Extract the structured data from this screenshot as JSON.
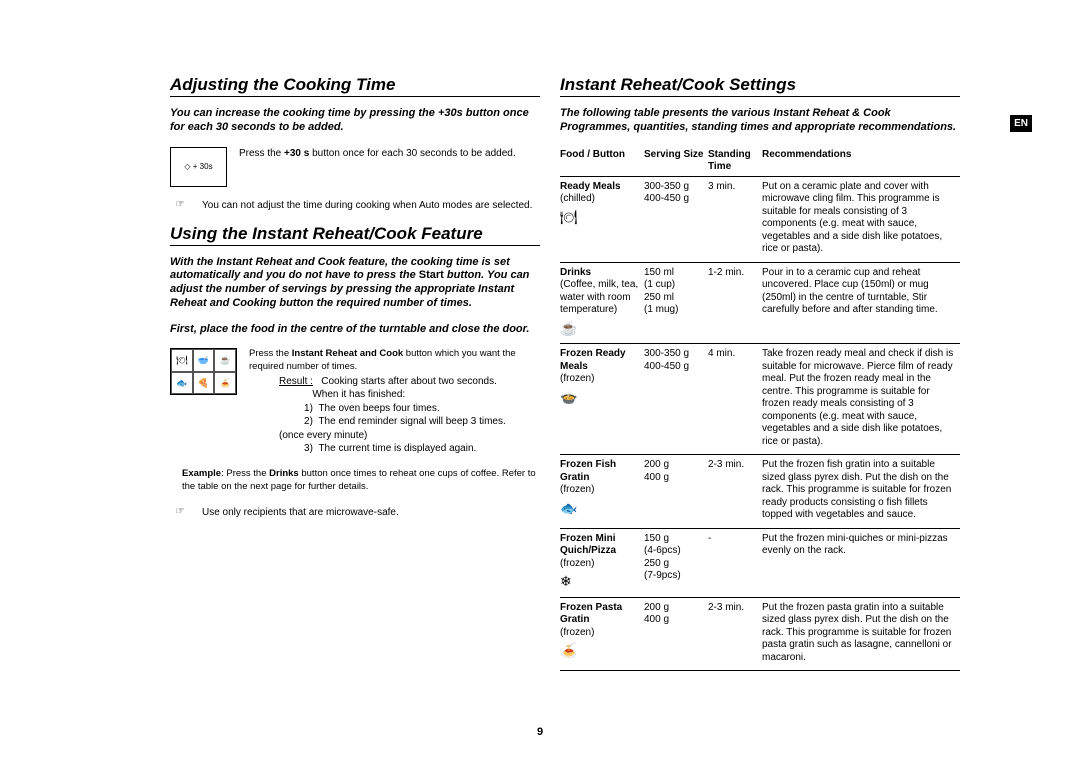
{
  "lang_tag": "EN",
  "page_number": "9",
  "left": {
    "section1": {
      "title": "Adjusting the Cooking Time",
      "intro": "You can increase the cooking time by pressing the +30s button once for each 30 seconds to be added.",
      "display_label": "◇ + 30s",
      "display_text_a": "Press the ",
      "display_text_bold": "+30 s",
      "display_text_b": " button once for each 30 seconds to be added.",
      "note_icon": "☞",
      "note_text": "You can not adjust the time during cooking when Auto modes are selected."
    },
    "section2": {
      "title": "Using the Instant Reheat/Cook Feature",
      "intro_a": "With the Instant Reheat  and Cook feature, the cooking time is set automatically and you do not have to press the ",
      "intro_mid": "Start ",
      "intro_b": "button. You can adjust the number of servings by pressing the appropriate Instant Reheat and Cooking button the required number of times.",
      "intro2": "First, place the food in the centre of the turntable and close the door.",
      "press_a": "Press the ",
      "press_bold": "Instant Reheat and Cook",
      "press_b": " button which you want the required number of times.",
      "result_label": "Result :",
      "result_start": "Cooking starts after about two seconds.",
      "result_finish": "When it has finished:",
      "result_1": "The oven beeps four times.",
      "result_2": "The end reminder signal will beep 3 times. (once every minute)",
      "result_3": "The current time is displayed again.",
      "example_label": "Example",
      "example_a": ": Press the ",
      "example_bold": "Drinks",
      "example_b": " button once times to reheat one cups of coffee. Refer to the  table on the next page for further details.",
      "safe_icon": "☞",
      "safe_text": "Use only recipients that are microwave-safe."
    }
  },
  "right": {
    "title": "Instant Reheat/Cook Settings",
    "intro": "The following table presents the various Instant Reheat & Cook Programmes, quantities, standing times and appropriate recommendations.",
    "headers": {
      "food": "Food / Button",
      "serving": "Serving Size",
      "standing": "Standing Time",
      "rec": "Recommendations"
    },
    "rows": [
      {
        "name": "Ready Meals",
        "sub": "(chilled)",
        "icon": "🍽",
        "serving": "300-350 g\n400-450 g",
        "standing": "3 min.",
        "rec": "Put on a ceramic plate and cover with microwave cling film. This programme is suitable for meals consisting of 3 components (e.g. meat with sauce, vegetables and a side dish like potatoes, rice or pasta)."
      },
      {
        "name": "Drinks",
        "sub": "(Coffee, milk, tea, water with room temperature)",
        "icon": "☕",
        "serving": "150 ml\n(1 cup)\n250 ml\n(1 mug)",
        "standing": "1-2 min.",
        "rec": "Pour in to a ceramic cup and reheat uncovered. Place cup (150ml) or mug (250ml) in the centre of turntable, Stir carefully before and after standing time."
      },
      {
        "name": "Frozen Ready Meals",
        "sub": "(frozen)",
        "icon": "🍲",
        "serving": "300-350 g\n400-450 g",
        "standing": "4 min.",
        "rec": "Take frozen ready meal and check if dish is suitable for microwave. Pierce film of ready meal. Put the frozen ready meal in the centre. This programme is suitable for frozen ready meals consisting of 3 components (e.g. meat with sauce, vegetables and a side dish like potatoes, rice or pasta)."
      },
      {
        "name": "Frozen Fish Gratin",
        "sub": "(frozen)",
        "icon": "🐟",
        "serving": "200 g\n400 g",
        "standing": "2-3 min.",
        "rec": "Put the frozen fish gratin into a suitable sized glass pyrex dish. Put the dish on the rack. This programme is suitable for frozen ready products consisting o fish fillets topped with vegetables and sauce."
      },
      {
        "name": "Frozen Mini Quich/Pizza",
        "sub": "(frozen)",
        "icon": "❄",
        "serving": "150 g\n(4-6pcs)\n250 g\n(7-9pcs)",
        "standing": "-",
        "rec": "Put the frozen mini-quiches or mini-pizzas evenly on the rack."
      },
      {
        "name": "Frozen Pasta Gratin",
        "sub": "(frozen)",
        "icon": "🍝",
        "serving": "200 g\n400 g",
        "standing": "2-3 min.",
        "rec": "Put the frozen pasta  gratin into a suitable sized glass pyrex dish. Put the dish on the rack. This programme is suitable for frozen pasta gratin such as lasagne, cannelloni or macaroni."
      }
    ]
  }
}
